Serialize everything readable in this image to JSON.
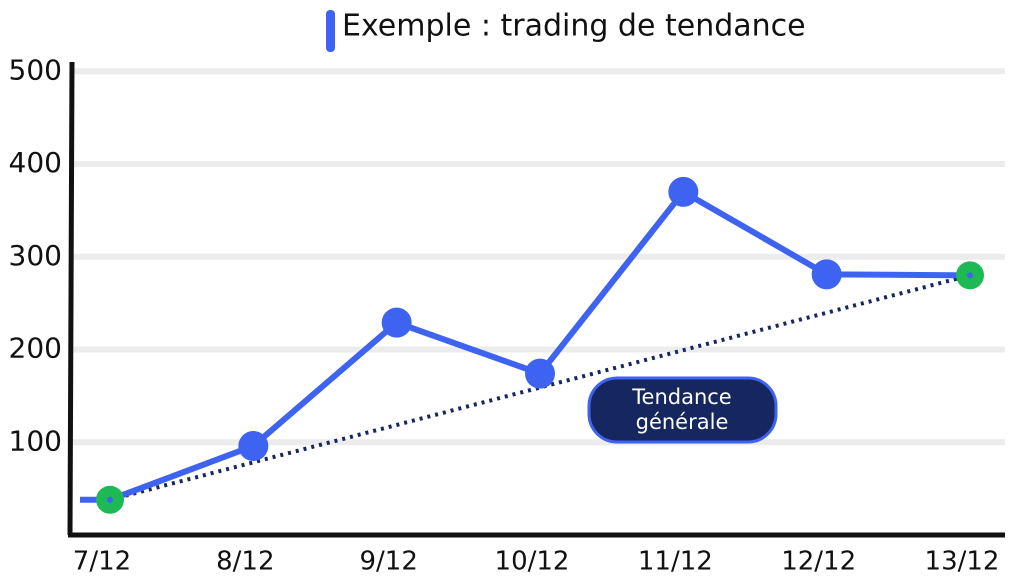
{
  "chart_data": {
    "type": "line",
    "categories": [
      "7/12",
      "8/12",
      "9/12",
      "10/12",
      "11/12",
      "12/12",
      "13/12"
    ],
    "series": [
      {
        "name": "Exemple : trading de tendance",
        "color": "#3d63f0",
        "values": [
          38,
          96,
          229,
          174,
          370,
          281,
          280
        ]
      }
    ],
    "ylim": [
      0,
      510
    ],
    "yticks": [
      100,
      200,
      300,
      400,
      500
    ],
    "grid": true,
    "endpoint_color": "#1db954",
    "annotation": "Tendance générale",
    "trend_color": "#16265e"
  }
}
